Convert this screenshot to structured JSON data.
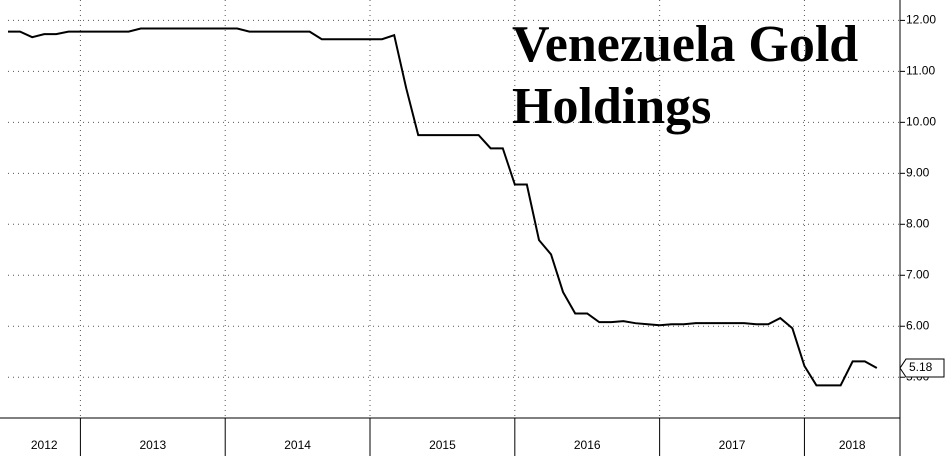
{
  "chart_data": {
    "type": "line",
    "title": "Venezuela Gold Holdings",
    "x": [
      2012.5,
      2012.583,
      2012.667,
      2012.75,
      2012.833,
      2012.917,
      2013,
      2013.083,
      2013.167,
      2013.25,
      2013.333,
      2013.417,
      2013.5,
      2013.583,
      2013.667,
      2013.75,
      2013.833,
      2013.917,
      2014,
      2014.083,
      2014.167,
      2014.25,
      2014.333,
      2014.417,
      2014.5,
      2014.583,
      2014.667,
      2014.75,
      2014.833,
      2014.917,
      2015,
      2015.083,
      2015.167,
      2015.25,
      2015.333,
      2015.417,
      2015.5,
      2015.583,
      2015.667,
      2015.75,
      2015.833,
      2015.917,
      2016,
      2016.083,
      2016.167,
      2016.25,
      2016.333,
      2016.417,
      2016.5,
      2016.583,
      2016.667,
      2016.75,
      2016.833,
      2016.917,
      2017,
      2017.083,
      2017.167,
      2017.25,
      2017.333,
      2017.417,
      2017.5,
      2017.583,
      2017.667,
      2017.75,
      2017.833,
      2017.917,
      2018,
      2018.083,
      2018.167,
      2018.25,
      2018.333,
      2018.417,
      2018.5
    ],
    "series": [
      {
        "color": "#000000",
        "values": [
          11.78,
          11.78,
          11.67,
          11.73,
          11.73,
          11.78,
          11.78,
          11.78,
          11.78,
          11.78,
          11.78,
          11.84,
          11.84,
          11.84,
          11.84,
          11.84,
          11.84,
          11.84,
          11.84,
          11.84,
          11.78,
          11.78,
          11.78,
          11.78,
          11.78,
          11.78,
          11.63,
          11.63,
          11.63,
          11.63,
          11.63,
          11.63,
          11.71,
          10.67,
          9.75,
          9.75,
          9.75,
          9.75,
          9.75,
          9.75,
          9.49,
          9.49,
          8.78,
          8.78,
          7.69,
          7.41,
          6.67,
          6.25,
          6.25,
          6.08,
          6.08,
          6.1,
          6.06,
          6.04,
          6.02,
          6.04,
          6.04,
          6.06,
          6.06,
          6.06,
          6.06,
          6.06,
          6.04,
          6.04,
          6.16,
          5.96,
          5.22,
          4.84,
          4.84,
          4.84,
          5.31,
          5.31,
          5.18
        ]
      }
    ],
    "xlim": [
      2012.5,
      2018.66
    ],
    "xticks": [
      2012,
      2013,
      2014,
      2015,
      2016,
      2017,
      2018
    ],
    "ylim": [
      4.2,
      12.4
    ],
    "yticks": [
      {
        "value": 5,
        "label": "5.00"
      },
      {
        "value": 6,
        "label": "6.00"
      },
      {
        "value": 7,
        "label": "7.00"
      },
      {
        "value": 8,
        "label": "8.00"
      },
      {
        "value": 9,
        "label": "9.00"
      },
      {
        "value": 10,
        "label": "10.00"
      },
      {
        "value": 11,
        "label": "11.00"
      },
      {
        "value": 12,
        "label": "12.00"
      }
    ],
    "grid": true
  }
}
